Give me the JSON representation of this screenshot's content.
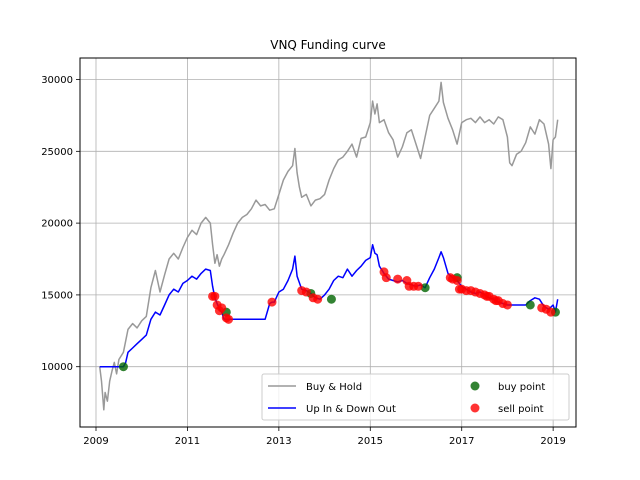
{
  "chart_data": {
    "type": "line",
    "title": "VNQ Funding curve",
    "xlabel": "",
    "ylabel": "",
    "xlim": [
      2008.65,
      2019.5
    ],
    "ylim": [
      5800,
      31500
    ],
    "xticks": [
      2009,
      2011,
      2013,
      2015,
      2017,
      2019
    ],
    "xtick_labels": [
      "2009",
      "2011",
      "2013",
      "2015",
      "2017",
      "2019"
    ],
    "yticks": [
      10000,
      15000,
      20000,
      25000,
      30000
    ],
    "ytick_labels": [
      "10000",
      "15000",
      "20000",
      "25000",
      "30000"
    ],
    "grid": true,
    "legend": {
      "placement": "bottom-right",
      "columns": 2
    },
    "series": [
      {
        "name": "Buy & Hold",
        "kind": "line",
        "color": "#999999",
        "x": [
          2009.08,
          2009.12,
          2009.17,
          2009.2,
          2009.25,
          2009.3,
          2009.35,
          2009.4,
          2009.45,
          2009.5,
          2009.6,
          2009.7,
          2009.8,
          2009.9,
          2010.0,
          2010.1,
          2010.2,
          2010.3,
          2010.4,
          2010.5,
          2010.6,
          2010.7,
          2010.8,
          2010.9,
          2011.0,
          2011.1,
          2011.2,
          2011.3,
          2011.4,
          2011.5,
          2011.55,
          2011.6,
          2011.65,
          2011.7,
          2011.75,
          2011.8,
          2011.9,
          2012.0,
          2012.1,
          2012.2,
          2012.3,
          2012.4,
          2012.5,
          2012.6,
          2012.7,
          2012.8,
          2012.9,
          2013.0,
          2013.1,
          2013.2,
          2013.3,
          2013.35,
          2013.4,
          2013.45,
          2013.5,
          2013.6,
          2013.7,
          2013.8,
          2013.9,
          2014.0,
          2014.1,
          2014.2,
          2014.3,
          2014.4,
          2014.5,
          2014.6,
          2014.7,
          2014.8,
          2014.9,
          2015.0,
          2015.05,
          2015.1,
          2015.15,
          2015.2,
          2015.3,
          2015.4,
          2015.5,
          2015.6,
          2015.7,
          2015.8,
          2015.9,
          2016.0,
          2016.1,
          2016.2,
          2016.3,
          2016.4,
          2016.5,
          2016.55,
          2016.6,
          2016.7,
          2016.8,
          2016.9,
          2017.0,
          2017.1,
          2017.2,
          2017.3,
          2017.4,
          2017.5,
          2017.6,
          2017.7,
          2017.8,
          2017.9,
          2018.0,
          2018.05,
          2018.1,
          2018.2,
          2018.3,
          2018.4,
          2018.5,
          2018.6,
          2018.7,
          2018.8,
          2018.9,
          2018.95,
          2019.0,
          2019.05,
          2019.1
        ],
        "y": [
          10000,
          9000,
          7000,
          8200,
          7600,
          9000,
          9700,
          10300,
          9500,
          10500,
          11000,
          12600,
          13000,
          12700,
          13200,
          13500,
          15500,
          16700,
          15200,
          16400,
          17500,
          17900,
          17500,
          18300,
          19000,
          19500,
          19200,
          20000,
          20400,
          20000,
          18500,
          17200,
          17800,
          17000,
          17500,
          17800,
          18500,
          19300,
          20000,
          20400,
          20600,
          21000,
          21600,
          21200,
          21300,
          20900,
          21000,
          22000,
          23000,
          23600,
          24000,
          25200,
          23500,
          22500,
          21800,
          22000,
          21200,
          21600,
          21700,
          22000,
          23000,
          23800,
          24400,
          24600,
          25000,
          25500,
          24600,
          25900,
          26000,
          27000,
          28500,
          27600,
          28300,
          27000,
          27200,
          26300,
          25800,
          24600,
          25300,
          26300,
          26500,
          25500,
          24500,
          26000,
          27500,
          28000,
          28500,
          29800,
          28400,
          27300,
          26500,
          25500,
          27000,
          27200,
          27300,
          27000,
          27400,
          27000,
          27200,
          26900,
          27400,
          27200,
          26000,
          24200,
          24000,
          24800,
          25000,
          25600,
          26700,
          26200,
          27200,
          26900,
          25500,
          23800,
          25800,
          26000,
          27200
        ]
      },
      {
        "name": "Up In & Down Out",
        "kind": "line",
        "color": "#0000ff",
        "x": [
          2009.08,
          2009.6,
          2009.65,
          2009.7,
          2009.8,
          2009.9,
          2010.0,
          2010.1,
          2010.2,
          2010.3,
          2010.4,
          2010.5,
          2010.6,
          2010.7,
          2010.8,
          2010.9,
          2011.0,
          2011.1,
          2011.2,
          2011.3,
          2011.4,
          2011.5,
          2011.55,
          2011.6,
          2011.65,
          2011.7,
          2011.75,
          2011.8,
          2011.85,
          2011.9,
          2012.0,
          2012.1,
          2012.2,
          2012.3,
          2012.4,
          2012.5,
          2012.6,
          2012.7,
          2012.8,
          2012.85,
          2012.9,
          2013.0,
          2013.1,
          2013.2,
          2013.3,
          2013.35,
          2013.4,
          2013.5,
          2013.6,
          2013.7,
          2013.8,
          2013.9,
          2014.0,
          2014.1,
          2014.2,
          2014.3,
          2014.4,
          2014.5,
          2014.6,
          2014.7,
          2014.8,
          2014.9,
          2015.0,
          2015.05,
          2015.1,
          2015.15,
          2015.2,
          2015.3,
          2015.4,
          2015.5,
          2015.6,
          2015.7,
          2015.8,
          2015.9,
          2016.0,
          2016.1,
          2016.2,
          2016.3,
          2016.4,
          2016.5,
          2016.55,
          2016.6,
          2016.7,
          2016.8,
          2016.9,
          2017.0,
          2017.1,
          2017.2,
          2017.3,
          2017.4,
          2017.5,
          2017.6,
          2017.7,
          2017.8,
          2017.9,
          2018.0,
          2018.1,
          2018.2,
          2018.3,
          2018.4,
          2018.5,
          2018.6,
          2018.7,
          2018.8,
          2018.9,
          2019.0,
          2019.05,
          2019.1
        ],
        "y": [
          10000,
          10000,
          10300,
          11000,
          11300,
          11600,
          11900,
          12200,
          13300,
          13800,
          13600,
          14300,
          15000,
          15400,
          15200,
          15800,
          16000,
          16300,
          16100,
          16500,
          16800,
          16700,
          15600,
          14800,
          14400,
          14000,
          13800,
          13300,
          13300,
          13300,
          13300,
          13300,
          13300,
          13300,
          13300,
          13300,
          13300,
          13300,
          14400,
          14500,
          14500,
          15200,
          15400,
          16000,
          16800,
          17700,
          16300,
          15400,
          15300,
          15100,
          14800,
          14700,
          15000,
          15400,
          16000,
          16300,
          16200,
          16800,
          16300,
          16700,
          17000,
          17400,
          17600,
          18500,
          17900,
          17800,
          17000,
          16500,
          16100,
          16000,
          15900,
          16000,
          15800,
          15700,
          15600,
          15700,
          15500,
          16200,
          16800,
          17600,
          18000,
          17600,
          16500,
          16200,
          16000,
          15600,
          15400,
          15200,
          15100,
          15200,
          15000,
          14800,
          14700,
          14500,
          14400,
          14300,
          14300,
          14300,
          14300,
          14300,
          14600,
          14800,
          14700,
          14200,
          14000,
          14300,
          13800,
          14700
        ]
      },
      {
        "name": "buy point",
        "kind": "scatter",
        "color": "#006400",
        "x": [
          2009.6,
          2011.85,
          2013.7,
          2014.15,
          2016.2,
          2016.9,
          2018.5,
          2019.05
        ],
        "y": [
          10000,
          13800,
          15100,
          14700,
          15500,
          16200,
          14300,
          13800
        ]
      },
      {
        "name": "sell point",
        "kind": "scatter",
        "color": "#ff0000",
        "x": [
          2011.55,
          2011.6,
          2011.65,
          2011.7,
          2011.75,
          2011.85,
          2011.9,
          2012.85,
          2013.5,
          2013.6,
          2013.75,
          2013.85,
          2015.3,
          2015.35,
          2015.6,
          2015.8,
          2015.85,
          2015.95,
          2016.05,
          2016.75,
          2016.8,
          2016.9,
          2016.95,
          2017.0,
          2017.1,
          2017.2,
          2017.3,
          2017.4,
          2017.5,
          2017.55,
          2017.6,
          2017.7,
          2017.75,
          2017.8,
          2017.9,
          2018.0,
          2018.75,
          2018.85,
          2018.95
        ],
        "y": [
          14900,
          14900,
          14300,
          13900,
          14100,
          13400,
          13300,
          14500,
          15300,
          15200,
          14800,
          14700,
          16600,
          16200,
          16100,
          16000,
          15600,
          15600,
          15600,
          16200,
          16100,
          16000,
          15400,
          15400,
          15300,
          15300,
          15200,
          15100,
          15000,
          14900,
          14900,
          14700,
          14600,
          14600,
          14400,
          14300,
          14100,
          14000,
          13800
        ]
      }
    ]
  }
}
